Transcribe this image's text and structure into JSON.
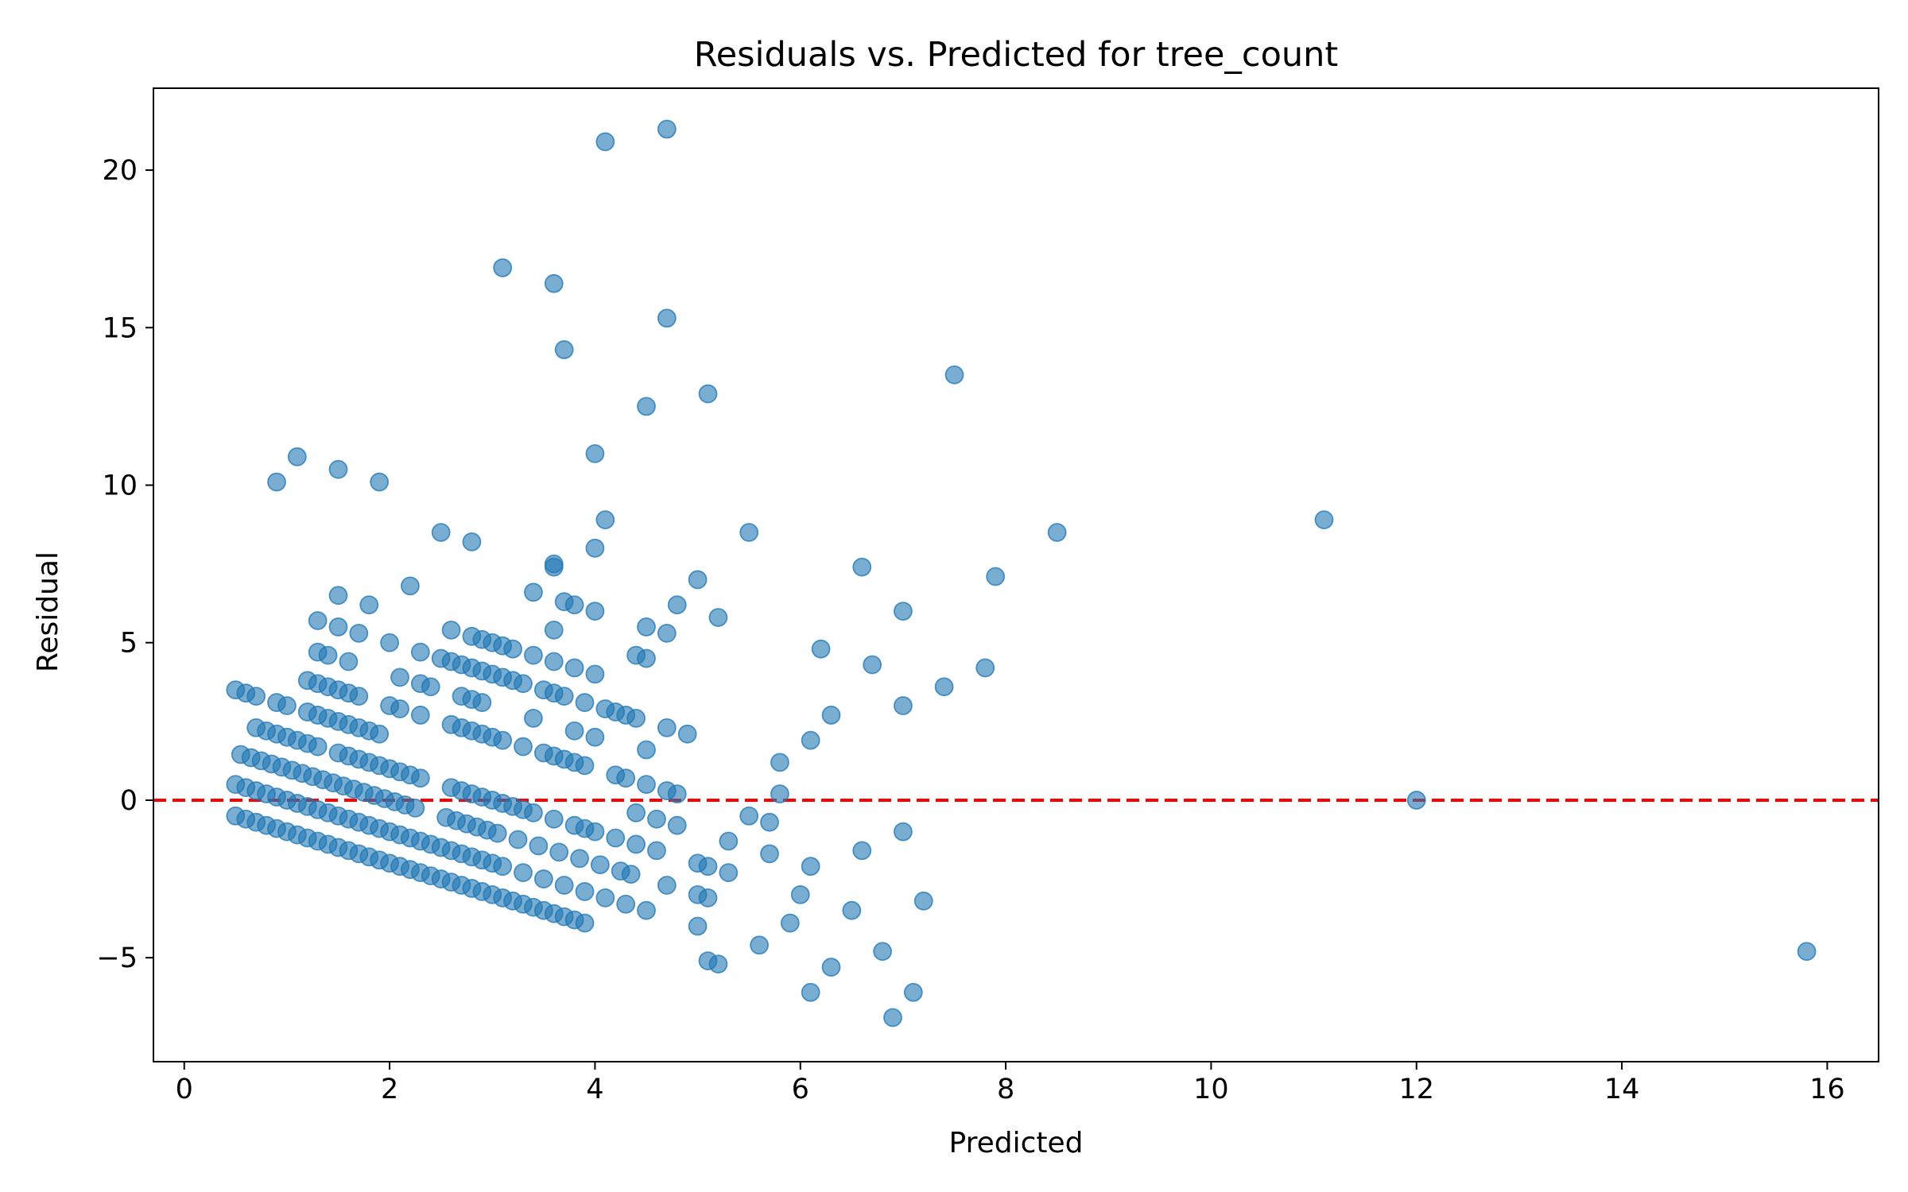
{
  "chart_data": {
    "type": "scatter",
    "title": "Residuals vs. Predicted for tree_count",
    "xlabel": "Predicted",
    "ylabel": "Residual",
    "xlim": [
      -0.3,
      16.5
    ],
    "ylim": [
      -8.3,
      22.6
    ],
    "xticks": [
      0,
      2,
      4,
      6,
      8,
      10,
      12,
      14,
      16
    ],
    "yticks": [
      -5,
      0,
      5,
      10,
      15,
      20
    ],
    "xtick_labels": [
      "0",
      "2",
      "4",
      "6",
      "8",
      "10",
      "12",
      "14",
      "16"
    ],
    "ytick_labels": [
      "−5",
      "0",
      "5",
      "10",
      "15",
      "20"
    ],
    "grid": false,
    "legend": "none",
    "reference_line": {
      "y": 0,
      "style": "dashed",
      "color": "#ff0000"
    },
    "marker": {
      "color": "#1f77b4",
      "opacity": 0.6
    },
    "series": [
      {
        "points": [
          [
            0.5,
            -0.5
          ],
          [
            0.6,
            -0.6
          ],
          [
            0.7,
            -0.7
          ],
          [
            0.8,
            -0.8
          ],
          [
            0.9,
            -0.9
          ],
          [
            1.0,
            -1.0
          ],
          [
            1.1,
            -1.1
          ],
          [
            1.2,
            -1.2
          ],
          [
            1.3,
            -1.3
          ],
          [
            1.4,
            -1.4
          ],
          [
            1.5,
            -1.5
          ],
          [
            1.6,
            -1.6
          ],
          [
            1.7,
            -1.7
          ],
          [
            1.8,
            -1.8
          ],
          [
            1.9,
            -1.9
          ],
          [
            2.0,
            -2.0
          ],
          [
            2.1,
            -2.1
          ],
          [
            2.2,
            -2.2
          ],
          [
            2.3,
            -2.3
          ],
          [
            2.4,
            -2.4
          ],
          [
            2.5,
            -2.5
          ],
          [
            2.6,
            -2.6
          ],
          [
            2.7,
            -2.7
          ],
          [
            2.8,
            -2.8
          ],
          [
            2.9,
            -2.9
          ],
          [
            3.0,
            -3.0
          ],
          [
            3.1,
            -3.1
          ],
          [
            3.2,
            -3.2
          ],
          [
            3.3,
            -3.3
          ],
          [
            3.4,
            -3.4
          ],
          [
            3.5,
            -3.5
          ],
          [
            3.6,
            -3.6
          ],
          [
            3.7,
            -3.7
          ],
          [
            3.8,
            -3.8
          ],
          [
            3.9,
            -3.9
          ],
          [
            0.5,
            0.5
          ],
          [
            0.6,
            0.4
          ],
          [
            0.7,
            0.3
          ],
          [
            0.8,
            0.2
          ],
          [
            0.9,
            0.1
          ],
          [
            1.0,
            0.0
          ],
          [
            1.1,
            -0.1
          ],
          [
            1.2,
            -0.2
          ],
          [
            1.3,
            -0.3
          ],
          [
            1.4,
            -0.4
          ],
          [
            1.5,
            -0.5
          ],
          [
            1.6,
            -0.6
          ],
          [
            1.7,
            -0.7
          ],
          [
            1.8,
            -0.8
          ],
          [
            1.9,
            -0.9
          ],
          [
            2.0,
            -1.0
          ],
          [
            2.1,
            -1.1
          ],
          [
            2.2,
            -1.2
          ],
          [
            2.3,
            -1.3
          ],
          [
            2.4,
            -1.4
          ],
          [
            2.5,
            -1.5
          ],
          [
            2.6,
            -1.6
          ],
          [
            2.7,
            -1.7
          ],
          [
            2.8,
            -1.8
          ],
          [
            2.9,
            -1.9
          ],
          [
            3.0,
            -2.0
          ],
          [
            3.1,
            -2.1
          ],
          [
            3.3,
            -2.3
          ],
          [
            3.5,
            -2.5
          ],
          [
            3.7,
            -2.7
          ],
          [
            3.9,
            -2.9
          ],
          [
            4.1,
            -3.1
          ],
          [
            4.3,
            -3.3
          ],
          [
            4.5,
            -3.5
          ],
          [
            0.55,
            1.45
          ],
          [
            0.65,
            1.35
          ],
          [
            0.75,
            1.25
          ],
          [
            0.85,
            1.15
          ],
          [
            0.95,
            1.05
          ],
          [
            1.05,
            0.95
          ],
          [
            1.15,
            0.85
          ],
          [
            1.25,
            0.75
          ],
          [
            1.35,
            0.65
          ],
          [
            1.45,
            0.55
          ],
          [
            1.55,
            0.45
          ],
          [
            1.65,
            0.35
          ],
          [
            1.75,
            0.25
          ],
          [
            1.85,
            0.15
          ],
          [
            1.95,
            0.05
          ],
          [
            2.05,
            -0.05
          ],
          [
            2.15,
            -0.15
          ],
          [
            2.25,
            -0.25
          ],
          [
            2.55,
            -0.55
          ],
          [
            2.65,
            -0.65
          ],
          [
            2.75,
            -0.75
          ],
          [
            2.85,
            -0.85
          ],
          [
            2.95,
            -0.95
          ],
          [
            3.05,
            -1.05
          ],
          [
            3.25,
            -1.25
          ],
          [
            3.45,
            -1.45
          ],
          [
            3.65,
            -1.65
          ],
          [
            3.85,
            -1.85
          ],
          [
            4.05,
            -2.05
          ],
          [
            4.25,
            -2.25
          ],
          [
            4.35,
            -2.35
          ],
          [
            0.7,
            2.3
          ],
          [
            0.8,
            2.2
          ],
          [
            0.9,
            2.1
          ],
          [
            1.0,
            2.0
          ],
          [
            1.1,
            1.9
          ],
          [
            1.2,
            1.8
          ],
          [
            1.3,
            1.7
          ],
          [
            1.5,
            1.5
          ],
          [
            1.6,
            1.4
          ],
          [
            1.7,
            1.3
          ],
          [
            1.8,
            1.2
          ],
          [
            1.9,
            1.1
          ],
          [
            2.0,
            1.0
          ],
          [
            2.1,
            0.9
          ],
          [
            2.2,
            0.8
          ],
          [
            2.3,
            0.7
          ],
          [
            2.6,
            0.4
          ],
          [
            2.7,
            0.3
          ],
          [
            2.8,
            0.2
          ],
          [
            2.9,
            0.1
          ],
          [
            3.0,
            0.0
          ],
          [
            3.1,
            -0.1
          ],
          [
            3.2,
            -0.2
          ],
          [
            3.3,
            -0.3
          ],
          [
            3.4,
            -0.4
          ],
          [
            3.6,
            -0.6
          ],
          [
            3.8,
            -0.8
          ],
          [
            3.9,
            -0.9
          ],
          [
            4.0,
            -1.0
          ],
          [
            4.2,
            -1.2
          ],
          [
            4.4,
            -1.4
          ],
          [
            4.6,
            -1.6
          ],
          [
            4.7,
            -2.7
          ],
          [
            1.2,
            2.8
          ],
          [
            1.3,
            2.7
          ],
          [
            1.4,
            2.6
          ],
          [
            1.5,
            2.5
          ],
          [
            1.6,
            2.4
          ],
          [
            1.7,
            2.3
          ],
          [
            1.8,
            2.2
          ],
          [
            1.9,
            2.1
          ],
          [
            2.0,
            3.0
          ],
          [
            2.1,
            2.9
          ],
          [
            2.3,
            2.7
          ],
          [
            2.6,
            2.4
          ],
          [
            2.7,
            2.3
          ],
          [
            2.8,
            2.2
          ],
          [
            2.9,
            2.1
          ],
          [
            3.0,
            2.0
          ],
          [
            3.1,
            1.9
          ],
          [
            3.3,
            1.7
          ],
          [
            3.5,
            1.5
          ],
          [
            3.6,
            1.4
          ],
          [
            3.7,
            1.3
          ],
          [
            3.8,
            1.2
          ],
          [
            3.9,
            1.1
          ],
          [
            4.0,
            2.0
          ],
          [
            4.2,
            0.8
          ],
          [
            4.3,
            0.7
          ],
          [
            4.5,
            0.5
          ],
          [
            4.7,
            0.3
          ],
          [
            4.8,
            0.2
          ],
          [
            4.4,
            -0.4
          ],
          [
            4.6,
            -0.6
          ],
          [
            4.8,
            -0.8
          ],
          [
            0.9,
            3.1
          ],
          [
            1.0,
            3.0
          ],
          [
            1.2,
            3.8
          ],
          [
            1.3,
            3.7
          ],
          [
            1.4,
            3.6
          ],
          [
            1.5,
            3.5
          ],
          [
            1.6,
            3.4
          ],
          [
            1.7,
            3.3
          ],
          [
            2.1,
            3.9
          ],
          [
            2.3,
            3.7
          ],
          [
            2.4,
            3.6
          ],
          [
            2.7,
            3.3
          ],
          [
            2.8,
            3.2
          ],
          [
            2.9,
            3.1
          ],
          [
            3.0,
            4.0
          ],
          [
            3.1,
            3.9
          ],
          [
            3.2,
            3.8
          ],
          [
            3.3,
            3.7
          ],
          [
            3.5,
            3.5
          ],
          [
            3.6,
            3.4
          ],
          [
            3.7,
            3.3
          ],
          [
            3.9,
            3.1
          ],
          [
            4.0,
            4.0
          ],
          [
            4.1,
            2.9
          ],
          [
            4.2,
            2.8
          ],
          [
            4.3,
            2.7
          ],
          [
            4.4,
            2.6
          ],
          [
            4.7,
            2.3
          ],
          [
            4.9,
            2.1
          ],
          [
            3.8,
            2.2
          ],
          [
            3.4,
            2.6
          ],
          [
            0.5,
            3.5
          ],
          [
            0.6,
            3.4
          ],
          [
            0.7,
            3.3
          ],
          [
            1.3,
            4.7
          ],
          [
            1.4,
            4.6
          ],
          [
            1.6,
            4.4
          ],
          [
            2.3,
            4.7
          ],
          [
            2.5,
            4.5
          ],
          [
            2.6,
            4.4
          ],
          [
            2.7,
            4.3
          ],
          [
            2.8,
            4.2
          ],
          [
            2.9,
            4.1
          ],
          [
            3.1,
            4.9
          ],
          [
            3.2,
            4.8
          ],
          [
            3.4,
            4.6
          ],
          [
            3.6,
            4.4
          ],
          [
            3.8,
            4.2
          ],
          [
            4.4,
            4.6
          ],
          [
            4.5,
            4.5
          ],
          [
            2.0,
            5.0
          ],
          [
            3.0,
            5.0
          ],
          [
            2.9,
            5.1
          ],
          [
            2.8,
            5.2
          ],
          [
            2.6,
            5.4
          ],
          [
            1.5,
            5.5
          ],
          [
            1.7,
            5.3
          ],
          [
            1.3,
            5.7
          ],
          [
            3.6,
            5.4
          ],
          [
            4.7,
            5.3
          ],
          [
            4.5,
            5.5
          ],
          [
            1.5,
            6.5
          ],
          [
            1.8,
            6.2
          ],
          [
            2.2,
            6.8
          ],
          [
            3.4,
            6.6
          ],
          [
            3.7,
            6.3
          ],
          [
            3.8,
            6.2
          ],
          [
            4.0,
            6.0
          ],
          [
            4.8,
            6.2
          ],
          [
            5.0,
            7.0
          ],
          [
            5.2,
            5.8
          ],
          [
            3.6,
            7.4
          ],
          [
            3.6,
            7.5
          ],
          [
            4.0,
            8.0
          ],
          [
            4.1,
            8.9
          ],
          [
            2.5,
            8.5
          ],
          [
            2.8,
            8.2
          ],
          [
            5.5,
            8.5
          ],
          [
            0.9,
            10.1
          ],
          [
            1.1,
            10.9
          ],
          [
            1.5,
            10.5
          ],
          [
            1.9,
            10.1
          ],
          [
            4.0,
            11.0
          ],
          [
            4.5,
            12.5
          ],
          [
            5.1,
            12.9
          ],
          [
            3.7,
            14.3
          ],
          [
            3.6,
            16.4
          ],
          [
            3.1,
            16.9
          ],
          [
            4.7,
            15.3
          ],
          [
            4.1,
            20.9
          ],
          [
            4.7,
            21.3
          ],
          [
            4.5,
            1.6
          ],
          [
            5.0,
            -2.0
          ],
          [
            5.1,
            -2.1
          ],
          [
            5.0,
            -3.0
          ],
          [
            5.1,
            -3.1
          ],
          [
            5.0,
            -4.0
          ],
          [
            5.1,
            -5.1
          ],
          [
            5.2,
            -5.2
          ],
          [
            5.3,
            -1.3
          ],
          [
            5.3,
            -2.3
          ],
          [
            5.5,
            -0.5
          ],
          [
            5.6,
            -4.6
          ],
          [
            5.7,
            -0.7
          ],
          [
            5.7,
            -1.7
          ],
          [
            5.8,
            1.2
          ],
          [
            5.8,
            0.2
          ],
          [
            5.9,
            -3.9
          ],
          [
            6.0,
            -3.0
          ],
          [
            6.1,
            1.9
          ],
          [
            6.1,
            -2.1
          ],
          [
            6.1,
            -6.1
          ],
          [
            6.2,
            4.8
          ],
          [
            6.3,
            2.7
          ],
          [
            6.3,
            -5.3
          ],
          [
            6.5,
            -3.5
          ],
          [
            6.6,
            7.4
          ],
          [
            6.6,
            -1.6
          ],
          [
            6.7,
            4.3
          ],
          [
            6.8,
            -4.8
          ],
          [
            6.9,
            -6.9
          ],
          [
            7.0,
            3.0
          ],
          [
            7.0,
            -1.0
          ],
          [
            7.0,
            6.0
          ],
          [
            7.1,
            -6.1
          ],
          [
            7.2,
            -3.2
          ],
          [
            7.4,
            3.6
          ],
          [
            7.5,
            13.5
          ],
          [
            7.8,
            4.2
          ],
          [
            7.9,
            7.1
          ],
          [
            8.5,
            8.5
          ],
          [
            11.1,
            8.9
          ],
          [
            12.0,
            0.0
          ],
          [
            15.8,
            -4.8
          ]
        ]
      }
    ]
  }
}
